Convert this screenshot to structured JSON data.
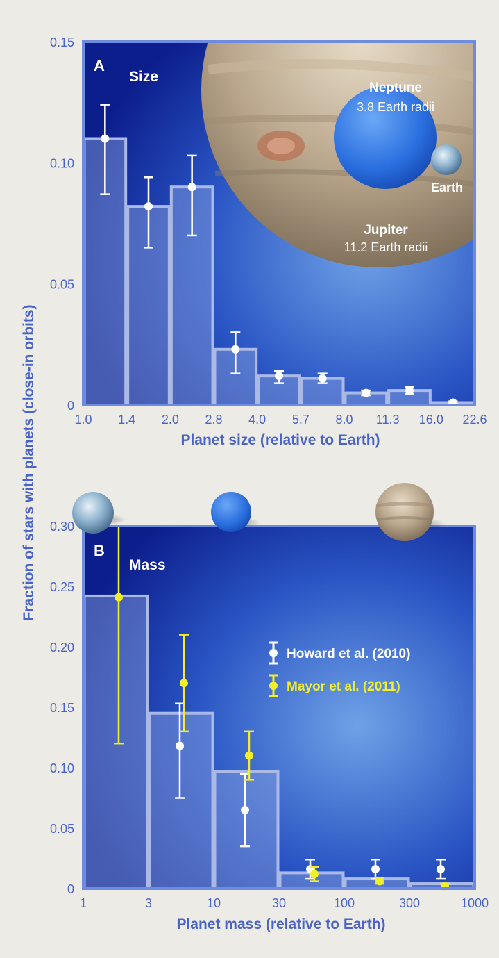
{
  "figure": {
    "shared_ylabel": "Fraction of stars with planets (close-in orbits)"
  },
  "colors": {
    "axis_blue": "#4a63c8",
    "panel_dark": "#0b1f8c",
    "panel_light": "#4f86d8",
    "bar_fill": "#8fa7df",
    "bar_edge": "#aab9e6",
    "howard": "#ffffff",
    "mayor": "#f2ef2a"
  },
  "chart_data": [
    {
      "type": "bar",
      "panel_letter": "A",
      "panel_title": "Size",
      "xlabel": "Planet size (relative to Earth)",
      "x_ticks": [
        "1.0",
        "1.4",
        "2.0",
        "2.8",
        "4.0",
        "5.7",
        "8.0",
        "11.3",
        "16.0",
        "22.6"
      ],
      "ylim": [
        0,
        0.15
      ],
      "y_ticks": [
        {
          "value": 0,
          "label": "0"
        },
        {
          "value": 0.05,
          "label": "0.05"
        },
        {
          "value": 0.1,
          "label": "0.10"
        },
        {
          "value": 0.15,
          "label": "0.15"
        }
      ],
      "bars": [
        0.11,
        0.082,
        0.09,
        0.023,
        0.012,
        0.011,
        0.005,
        0.006,
        0.001
      ],
      "series": [
        {
          "points": [
            {
              "bin": 0,
              "y": 0.11,
              "lo": 0.087,
              "hi": 0.124
            },
            {
              "bin": 1,
              "y": 0.082,
              "lo": 0.065,
              "hi": 0.094
            },
            {
              "bin": 2,
              "y": 0.09,
              "lo": 0.07,
              "hi": 0.103
            },
            {
              "bin": 3,
              "y": 0.023,
              "lo": 0.013,
              "hi": 0.03
            },
            {
              "bin": 4,
              "y": 0.012,
              "lo": 0.009,
              "hi": 0.014
            },
            {
              "bin": 5,
              "y": 0.011,
              "lo": 0.009,
              "hi": 0.013
            },
            {
              "bin": 6,
              "y": 0.005,
              "lo": 0.004,
              "hi": 0.006
            },
            {
              "bin": 7,
              "y": 0.006,
              "lo": 0.0045,
              "hi": 0.0075
            },
            {
              "bin": 8,
              "y": 0.001,
              "lo": 0.0005,
              "hi": 0.0015
            }
          ]
        }
      ],
      "annotations": {
        "neptune_name": "Neptune",
        "neptune_size": "3.8 Earth radii",
        "earth_name": "Earth",
        "jupiter_name": "Jupiter",
        "jupiter_size": "11.2 Earth radii"
      }
    },
    {
      "type": "bar",
      "panel_letter": "B",
      "panel_title": "Mass",
      "xlabel": "Planet mass (relative to Earth)",
      "x_ticks": [
        "1",
        "3",
        "10",
        "30",
        "100",
        "300",
        "1000"
      ],
      "ylim": [
        0,
        0.3
      ],
      "y_ticks": [
        {
          "value": 0,
          "label": "0"
        },
        {
          "value": 0.05,
          "label": "0.05"
        },
        {
          "value": 0.1,
          "label": "0.10"
        },
        {
          "value": 0.15,
          "label": "0.15"
        },
        {
          "value": 0.2,
          "label": "0.20"
        },
        {
          "value": 0.25,
          "label": "0.25"
        },
        {
          "value": 0.3,
          "label": "0.30"
        }
      ],
      "bars": [
        0.242,
        0.145,
        0.097,
        0.013,
        0.008,
        0.004
      ],
      "series": [
        {
          "name": "Howard et al. (2010)",
          "points": [
            {
              "bin": 1,
              "y": 0.118,
              "lo": 0.075,
              "hi": 0.153
            },
            {
              "bin": 2,
              "y": 0.065,
              "lo": 0.035,
              "hi": 0.095
            },
            {
              "bin": 3,
              "y": 0.016,
              "lo": 0.008,
              "hi": 0.024
            },
            {
              "bin": 4,
              "y": 0.016,
              "lo": 0.008,
              "hi": 0.024
            },
            {
              "bin": 5,
              "y": 0.016,
              "lo": 0.008,
              "hi": 0.024
            }
          ]
        },
        {
          "name": "Mayor et al. (2011)",
          "points": [
            {
              "bin": 0,
              "y": 0.241,
              "lo": 0.12,
              "hi": 0.31
            },
            {
              "bin": 1,
              "y": 0.17,
              "lo": 0.13,
              "hi": 0.21
            },
            {
              "bin": 2,
              "y": 0.11,
              "lo": 0.09,
              "hi": 0.13
            },
            {
              "bin": 3,
              "y": 0.012,
              "lo": 0.006,
              "hi": 0.018
            },
            {
              "bin": 4,
              "y": 0.006,
              "lo": 0.004,
              "hi": 0.009
            },
            {
              "bin": 5,
              "y": 0.002,
              "lo": 0.0,
              "hi": 0.004
            }
          ]
        }
      ]
    }
  ]
}
